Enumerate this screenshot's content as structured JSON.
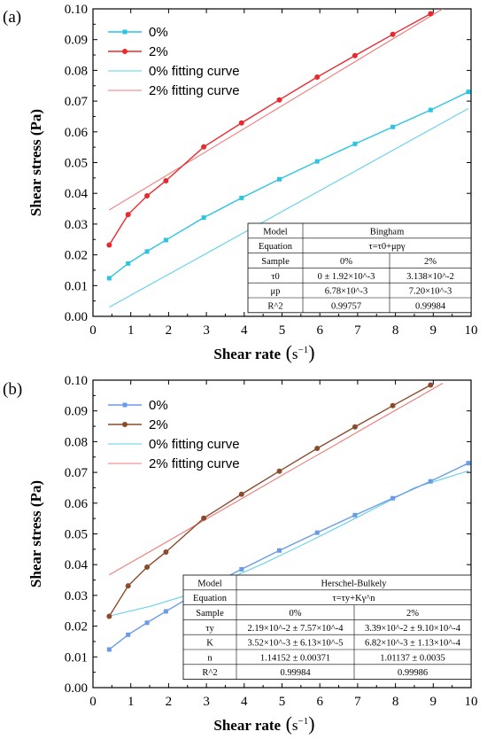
{
  "chart_data": [
    {
      "type": "line",
      "panel_label": "(a)",
      "xlabel": "Shear rate",
      "xlabel_unit": "s",
      "xlabel_exponent": "−1",
      "ylabel": "Shear stress (Pa)",
      "xlim": [
        0,
        10
      ],
      "ylim": [
        0,
        0.1
      ],
      "x_ticks": [
        "0",
        "1",
        "2",
        "3",
        "4",
        "5",
        "6",
        "7",
        "8",
        "9",
        "10"
      ],
      "y_ticks": [
        "0.00",
        "0.01",
        "0.02",
        "0.03",
        "0.04",
        "0.05",
        "0.06",
        "0.07",
        "0.08",
        "0.09",
        "0.10"
      ],
      "legend_position": "top-left",
      "series": [
        {
          "name": "0%",
          "color": "#2cc4e0",
          "marker": "square",
          "x": [
            0.43,
            0.93,
            1.43,
            1.93,
            2.93,
            3.93,
            4.93,
            5.93,
            6.93,
            7.93,
            8.93,
            9.93
          ],
          "y": [
            0.0124,
            0.0172,
            0.0211,
            0.0248,
            0.0321,
            0.0385,
            0.0446,
            0.0504,
            0.0561,
            0.0616,
            0.0671,
            0.073
          ]
        },
        {
          "name": "2%",
          "color": "#e8282d",
          "marker": "circle",
          "x": [
            0.43,
            0.93,
            1.43,
            1.93,
            2.93,
            3.93,
            4.93,
            5.93,
            6.93,
            7.93,
            8.93
          ],
          "y": [
            0.0232,
            0.0331,
            0.0392,
            0.0441,
            0.0551,
            0.0629,
            0.0704,
            0.0778,
            0.0848,
            0.0917,
            0.0984
          ]
        },
        {
          "name": "0% fitting curve",
          "color": "#5fd0ea",
          "marker": "none",
          "x": [
            0.43,
            9.93
          ],
          "y": [
            0.003,
            0.0676
          ]
        },
        {
          "name": "2% fitting curve",
          "color": "#f07a7a",
          "marker": "none",
          "x": [
            0.43,
            9.25
          ],
          "y": [
            0.0346,
            0.1
          ]
        }
      ],
      "table": {
        "rows": [
          {
            "label": "Model",
            "merged": "Bingham"
          },
          {
            "label": "Equation",
            "merged": "τ=τ0+μpγ"
          },
          {
            "label": "Sample",
            "c1": "0%",
            "c2": "2%"
          },
          {
            "label": "τ0",
            "c1": "0 ± 1.92×10^-3",
            "c2": "3.138×10^-2"
          },
          {
            "label": "μp",
            "c1": "6.78×10^-3",
            "c2": "7.20×10^-3"
          },
          {
            "label": "R^2",
            "c1": "0.99757",
            "c2": "0.99984"
          }
        ]
      }
    },
    {
      "type": "line",
      "panel_label": "(b)",
      "xlabel": "Shear rate",
      "xlabel_unit": "s",
      "xlabel_exponent": "−1",
      "ylabel": "Shear stress (Pa)",
      "xlim": [
        0,
        10
      ],
      "ylim": [
        0,
        0.1
      ],
      "x_ticks": [
        "0",
        "1",
        "2",
        "3",
        "4",
        "5",
        "6",
        "7",
        "8",
        "9",
        "10"
      ],
      "y_ticks": [
        "0.00",
        "0.01",
        "0.02",
        "0.03",
        "0.04",
        "0.05",
        "0.06",
        "0.07",
        "0.08",
        "0.09",
        "0.10"
      ],
      "legend_position": "top-left",
      "series": [
        {
          "name": "0%",
          "color": "#6a9be8",
          "marker": "square",
          "x": [
            0.43,
            0.93,
            1.43,
            1.93,
            2.93,
            3.93,
            4.93,
            5.93,
            6.93,
            7.93,
            8.93,
            9.93
          ],
          "y": [
            0.0124,
            0.0172,
            0.0211,
            0.0248,
            0.0321,
            0.0385,
            0.0446,
            0.0504,
            0.0561,
            0.0616,
            0.0671,
            0.073
          ]
        },
        {
          "name": "2%",
          "color": "#8b4a2b",
          "marker": "circle",
          "x": [
            0.43,
            0.93,
            1.43,
            1.93,
            2.93,
            3.93,
            4.93,
            5.93,
            6.93,
            7.93,
            8.93
          ],
          "y": [
            0.0232,
            0.0331,
            0.0392,
            0.0441,
            0.0551,
            0.0629,
            0.0704,
            0.0778,
            0.0848,
            0.0917,
            0.0984
          ]
        },
        {
          "name": "0% fitting curve",
          "color": "#5fd0ea",
          "marker": "none",
          "x": [
            0.43,
            1.5,
            2.5,
            3.5,
            4.5,
            5.5,
            6.5,
            7.5,
            8.5,
            9.93
          ],
          "y": [
            0.0233,
            0.0264,
            0.0301,
            0.0349,
            0.0403,
            0.0462,
            0.0523,
            0.0586,
            0.065,
            0.0705
          ]
        },
        {
          "name": "2% fitting curve",
          "color": "#f07a7a",
          "marker": "none",
          "x": [
            0.43,
            1.5,
            2.5,
            3.5,
            4.5,
            5.5,
            6.5,
            7.5,
            8.5,
            9.25
          ],
          "y": [
            0.0367,
            0.0442,
            0.0513,
            0.0584,
            0.0655,
            0.0726,
            0.0796,
            0.0867,
            0.0937,
            0.099
          ]
        }
      ],
      "table": {
        "rows": [
          {
            "label": "Model",
            "merged": "Herschel-Bulkely"
          },
          {
            "label": "Equation",
            "merged": "τ=τy+Kγ^n"
          },
          {
            "label": "Sample",
            "c1": "0%",
            "c2": "2%"
          },
          {
            "label": "τy",
            "c1": "2.19×10^-2 ± 7.57×10^-4",
            "c2": "3.39×10^-2 ± 9.10×10^-4"
          },
          {
            "label": "K",
            "c1": "3.52×10^-3 ± 6.13×10^-5",
            "c2": "6.82×10^-3 ± 1.13×10^-4"
          },
          {
            "label": "n",
            "c1": "1.14152 ± 0.00371",
            "c2": "1.01137 ± 0.0035"
          },
          {
            "label": "R^2",
            "c1": "0.99984",
            "c2": "0.99986"
          }
        ]
      }
    }
  ]
}
